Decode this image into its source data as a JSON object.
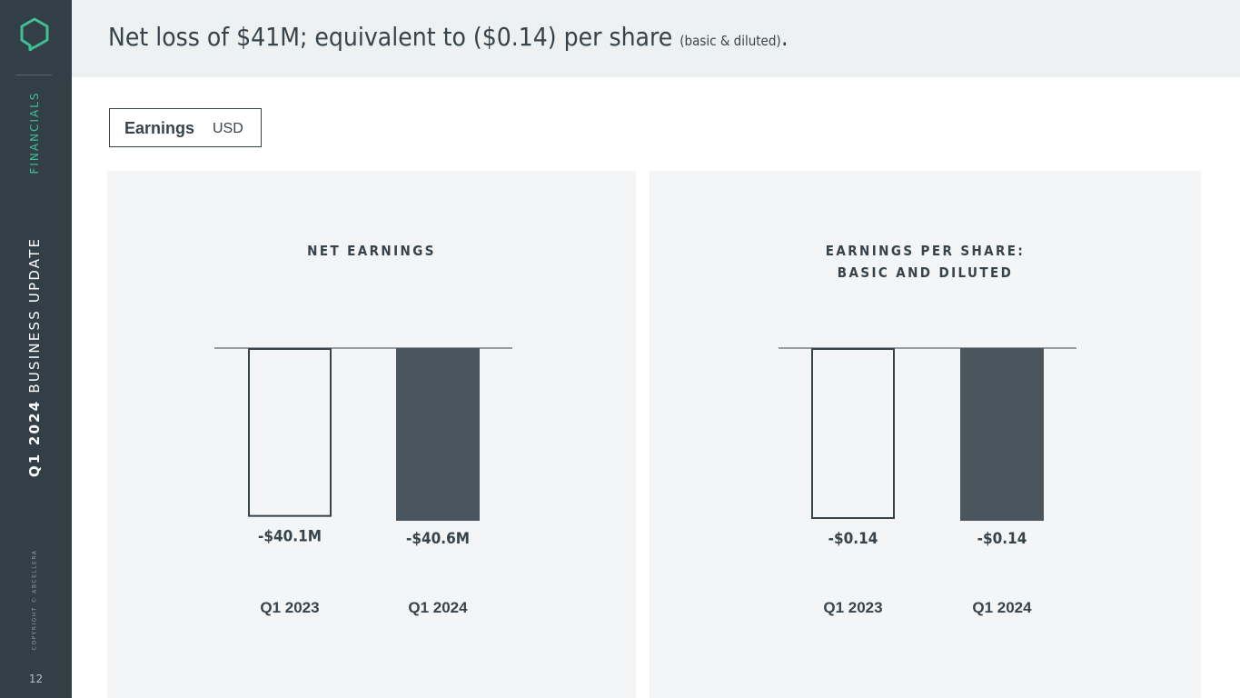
{
  "sidebar": {
    "section": "FINANCIALS",
    "update_bold": "Q1 2024",
    "update_rest": " BUSINESS UPDATE",
    "copyright": "COPYRIGHT © ABCELLERA",
    "page_number": "12",
    "logo_icon": "hexagon-chat-logo-icon",
    "accent_color": "#3fbf93"
  },
  "header": {
    "title_main": "Net loss of $41M; equivalent to ($0.14) per share",
    "title_small": "(basic & diluted)",
    "title_end": "."
  },
  "badge": {
    "label": "Earnings",
    "unit": "USD"
  },
  "chart_data": [
    {
      "type": "bar",
      "title": "NET EARNINGS",
      "categories": [
        "Q1 2023",
        "Q1 2024"
      ],
      "values": [
        -40.1,
        -40.6
      ],
      "data_labels": [
        "-$40.1M",
        "-$40.6M"
      ],
      "unit": "USD millions",
      "styles": [
        "outline",
        "filled"
      ],
      "fill_color": "#4a555e"
    },
    {
      "type": "bar",
      "title_lines": [
        "EARNINGS PER SHARE:",
        "BASIC AND DILUTED"
      ],
      "categories": [
        "Q1 2023",
        "Q1 2024"
      ],
      "values": [
        -0.14,
        -0.14
      ],
      "data_labels": [
        "-$0.14",
        "-$0.14"
      ],
      "unit": "USD per share",
      "styles": [
        "outline",
        "filled"
      ],
      "fill_color": "#4a555e"
    }
  ]
}
